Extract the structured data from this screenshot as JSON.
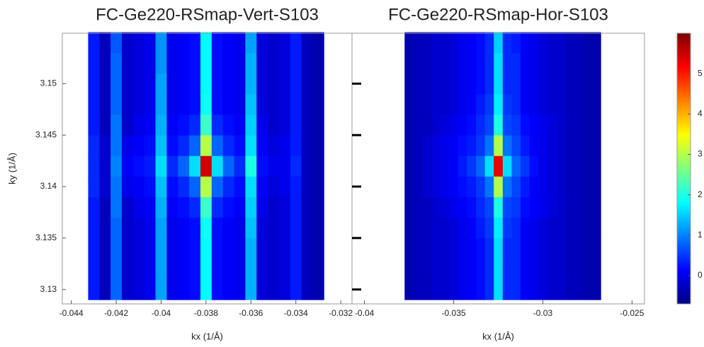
{
  "chart_data": [
    {
      "type": "heatmap",
      "title": "FC-Ge220-RSmap-Vert-S103",
      "x_label": "kx (1/Å)",
      "y_label": "ky (1/Å)",
      "xlim": [
        -0.0444,
        -0.0315
      ],
      "ylim": [
        3.1286,
        3.1549
      ],
      "xticks": [
        -0.044,
        -0.042,
        -0.04,
        -0.038,
        -0.036,
        -0.034,
        -0.032
      ],
      "yticks": [
        3.13,
        3.135,
        3.14,
        3.145,
        3.15
      ],
      "x": [
        -0.043,
        -0.0425,
        -0.042,
        -0.0415,
        -0.041,
        -0.0405,
        -0.04,
        -0.0395,
        -0.039,
        -0.0385,
        -0.038,
        -0.0375,
        -0.037,
        -0.0365,
        -0.036,
        -0.0355,
        -0.035,
        -0.0345,
        -0.034,
        -0.0335,
        -0.033
      ],
      "y": [
        3.13,
        3.132,
        3.134,
        3.136,
        3.138,
        3.14,
        3.142,
        3.144,
        3.146,
        3.148,
        3.15,
        3.152,
        3.154
      ],
      "values": [
        [
          0.3,
          -0.3,
          0.8,
          -0.2,
          -0.1,
          0.0,
          1.2,
          0.0,
          0.1,
          0.2,
          1.8,
          0.2,
          0.1,
          0.0,
          1.3,
          -0.1,
          -0.2,
          -0.1,
          0.3,
          -0.3,
          -0.4
        ],
        [
          0.3,
          -0.3,
          0.8,
          -0.2,
          -0.1,
          0.0,
          1.2,
          0.0,
          0.1,
          0.2,
          1.8,
          0.2,
          0.1,
          0.0,
          1.3,
          -0.1,
          -0.2,
          -0.1,
          0.3,
          -0.3,
          -0.4
        ],
        [
          0.3,
          -0.3,
          0.8,
          -0.2,
          -0.1,
          0.0,
          1.2,
          0.0,
          0.1,
          0.2,
          1.8,
          0.2,
          0.1,
          0.0,
          1.3,
          -0.1,
          -0.2,
          -0.1,
          0.3,
          -0.3,
          -0.4
        ],
        [
          0.3,
          -0.3,
          0.8,
          -0.2,
          -0.1,
          0.0,
          1.2,
          0.0,
          0.1,
          0.2,
          1.9,
          0.2,
          0.1,
          0.0,
          1.4,
          -0.1,
          -0.2,
          -0.1,
          0.3,
          -0.3,
          -0.4
        ],
        [
          0.3,
          -0.3,
          0.9,
          -0.2,
          0.0,
          0.1,
          1.3,
          0.1,
          0.2,
          0.4,
          2.2,
          0.4,
          0.2,
          0.1,
          1.5,
          0.0,
          -0.2,
          -0.1,
          0.3,
          -0.3,
          -0.4
        ],
        [
          0.4,
          -0.2,
          0.9,
          0.0,
          0.1,
          0.2,
          1.4,
          0.2,
          0.4,
          0.8,
          3.0,
          0.8,
          0.4,
          0.2,
          1.6,
          0.1,
          -0.1,
          0.0,
          0.3,
          -0.3,
          -0.4
        ],
        [
          0.4,
          -0.2,
          1.0,
          0.1,
          0.2,
          0.3,
          1.6,
          0.4,
          0.8,
          1.6,
          5.5,
          1.6,
          0.8,
          0.4,
          2.0,
          0.2,
          0.0,
          0.0,
          0.4,
          -0.3,
          -0.4
        ],
        [
          0.4,
          -0.2,
          0.9,
          0.0,
          0.1,
          0.2,
          1.4,
          0.2,
          0.4,
          0.8,
          3.0,
          0.8,
          0.4,
          0.2,
          1.6,
          0.1,
          -0.1,
          0.0,
          0.3,
          -0.3,
          -0.4
        ],
        [
          0.3,
          -0.3,
          0.9,
          -0.2,
          0.0,
          0.1,
          1.3,
          0.1,
          0.2,
          0.4,
          2.2,
          0.4,
          0.2,
          0.1,
          1.5,
          0.0,
          -0.2,
          -0.1,
          0.3,
          -0.3,
          -0.4
        ],
        [
          0.3,
          -0.3,
          0.8,
          -0.2,
          -0.1,
          0.0,
          1.2,
          0.0,
          0.1,
          0.2,
          1.9,
          0.2,
          0.1,
          0.0,
          1.4,
          -0.1,
          -0.2,
          -0.1,
          0.3,
          -0.3,
          -0.4
        ],
        [
          0.3,
          -0.3,
          0.8,
          -0.2,
          -0.1,
          0.0,
          1.2,
          0.0,
          0.1,
          0.2,
          1.8,
          0.2,
          0.1,
          0.0,
          1.3,
          -0.1,
          -0.2,
          -0.1,
          0.3,
          -0.3,
          -0.4
        ],
        [
          0.3,
          -0.3,
          0.8,
          -0.2,
          -0.1,
          0.0,
          1.1,
          0.0,
          0.1,
          0.2,
          1.8,
          0.2,
          0.1,
          0.0,
          1.3,
          -0.1,
          -0.2,
          -0.1,
          0.3,
          -0.3,
          -0.4
        ],
        [
          0.3,
          -0.3,
          0.7,
          -0.2,
          -0.1,
          0.0,
          1.1,
          0.0,
          0.1,
          0.2,
          1.8,
          0.2,
          0.1,
          0.0,
          1.2,
          -0.1,
          -0.2,
          -0.1,
          0.3,
          -0.3,
          -0.4
        ]
      ]
    },
    {
      "type": "heatmap",
      "title": "FC-Ge220-RSmap-Hor-S103",
      "x_label": "kx (1/Å)",
      "xlim": [
        -0.0407,
        -0.0243
      ],
      "ylim": [
        3.1286,
        3.1549
      ],
      "xticks": [
        -0.04,
        -0.035,
        -0.03,
        -0.025
      ],
      "yticks": [
        3.13,
        3.135,
        3.14,
        3.145,
        3.15
      ],
      "x": [
        -0.0375,
        -0.037,
        -0.0365,
        -0.036,
        -0.0355,
        -0.035,
        -0.0345,
        -0.034,
        -0.0335,
        -0.033,
        -0.0325,
        -0.032,
        -0.0315,
        -0.031,
        -0.0305,
        -0.03,
        -0.0295,
        -0.029,
        -0.0285,
        -0.028,
        -0.0275,
        -0.027
      ],
      "y": [
        3.13,
        3.132,
        3.134,
        3.136,
        3.138,
        3.14,
        3.142,
        3.144,
        3.146,
        3.148,
        3.15,
        3.152,
        3.154
      ],
      "values": [
        [
          -0.4,
          -0.3,
          -0.3,
          -0.2,
          -0.2,
          -0.1,
          0.0,
          0.1,
          0.2,
          0.4,
          1.6,
          0.4,
          0.4,
          0.1,
          0.0,
          -0.1,
          -0.2,
          -0.2,
          -0.3,
          -0.3,
          -0.4,
          -0.4
        ],
        [
          -0.4,
          -0.3,
          -0.3,
          -0.2,
          -0.2,
          -0.1,
          0.0,
          0.1,
          0.2,
          0.4,
          1.6,
          0.4,
          0.4,
          0.1,
          0.0,
          -0.1,
          -0.2,
          -0.2,
          -0.3,
          -0.3,
          -0.4,
          -0.4
        ],
        [
          -0.4,
          -0.3,
          -0.3,
          -0.2,
          -0.2,
          -0.1,
          0.0,
          0.1,
          0.2,
          0.4,
          1.6,
          0.4,
          0.4,
          0.1,
          0.0,
          -0.1,
          -0.2,
          -0.2,
          -0.3,
          -0.3,
          -0.4,
          -0.4
        ],
        [
          -0.4,
          -0.3,
          -0.3,
          -0.2,
          -0.2,
          -0.1,
          0.0,
          0.1,
          0.3,
          0.5,
          1.7,
          0.5,
          0.4,
          0.1,
          0.0,
          -0.1,
          -0.2,
          -0.2,
          -0.3,
          -0.3,
          -0.4,
          -0.4
        ],
        [
          -0.4,
          -0.3,
          -0.3,
          -0.2,
          -0.1,
          0.0,
          0.1,
          0.2,
          0.4,
          0.6,
          2.0,
          0.6,
          0.5,
          0.2,
          0.1,
          0.0,
          -0.1,
          -0.2,
          -0.3,
          -0.3,
          -0.4,
          -0.4
        ],
        [
          -0.4,
          -0.3,
          -0.2,
          -0.1,
          0.0,
          0.1,
          0.2,
          0.3,
          0.5,
          0.9,
          3.0,
          0.9,
          0.6,
          0.3,
          0.1,
          0.0,
          -0.1,
          -0.2,
          -0.3,
          -0.3,
          -0.4,
          -0.4
        ],
        [
          -0.4,
          -0.3,
          -0.2,
          -0.1,
          0.0,
          0.1,
          0.3,
          0.5,
          0.8,
          1.6,
          5.3,
          1.6,
          0.8,
          0.5,
          0.2,
          0.0,
          -0.1,
          -0.2,
          -0.3,
          -0.3,
          -0.4,
          -0.4
        ],
        [
          -0.4,
          -0.3,
          -0.2,
          -0.1,
          0.0,
          0.1,
          0.2,
          0.3,
          0.5,
          0.9,
          3.0,
          0.9,
          0.6,
          0.3,
          0.1,
          0.0,
          -0.1,
          -0.2,
          -0.3,
          -0.3,
          -0.4,
          -0.4
        ],
        [
          -0.4,
          -0.3,
          -0.3,
          -0.2,
          -0.1,
          0.0,
          0.1,
          0.2,
          0.4,
          0.6,
          2.0,
          0.6,
          0.5,
          0.2,
          0.1,
          0.0,
          -0.1,
          -0.2,
          -0.3,
          -0.3,
          -0.4,
          -0.4
        ],
        [
          -0.4,
          -0.3,
          -0.3,
          -0.2,
          -0.2,
          -0.1,
          0.0,
          0.1,
          0.3,
          0.5,
          1.7,
          0.5,
          0.4,
          0.1,
          0.0,
          -0.1,
          -0.2,
          -0.2,
          -0.3,
          -0.3,
          -0.4,
          -0.4
        ],
        [
          -0.4,
          -0.3,
          -0.3,
          -0.2,
          -0.2,
          -0.1,
          0.0,
          0.1,
          0.2,
          0.4,
          1.6,
          0.4,
          0.4,
          0.1,
          0.0,
          -0.1,
          -0.2,
          -0.2,
          -0.3,
          -0.3,
          -0.4,
          -0.4
        ],
        [
          -0.4,
          -0.3,
          -0.3,
          -0.2,
          -0.2,
          -0.1,
          0.0,
          0.1,
          0.2,
          0.4,
          1.6,
          0.4,
          0.4,
          0.1,
          0.0,
          -0.1,
          -0.2,
          -0.2,
          -0.3,
          -0.3,
          -0.4,
          -0.4
        ],
        [
          -0.4,
          -0.3,
          -0.3,
          -0.2,
          -0.2,
          -0.1,
          0.0,
          0.1,
          0.2,
          0.4,
          1.5,
          0.4,
          0.3,
          0.1,
          0.0,
          -0.1,
          -0.2,
          -0.2,
          -0.3,
          -0.3,
          -0.4,
          -0.4
        ]
      ]
    },
    {
      "type": "colorbar",
      "colormap": "jet",
      "zlim": [
        -0.7,
        6.0
      ],
      "zticks": [
        0,
        1,
        2,
        3,
        4,
        5
      ]
    }
  ]
}
